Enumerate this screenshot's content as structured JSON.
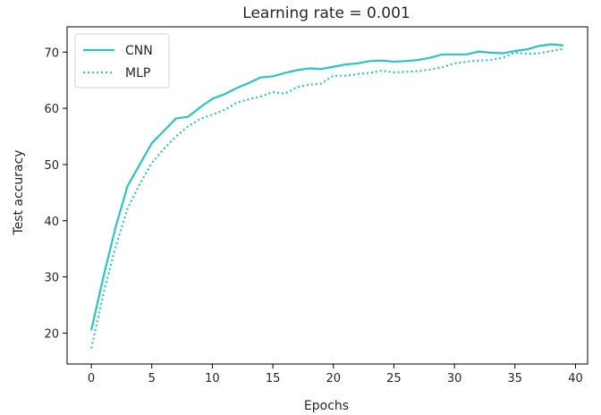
{
  "chart_data": {
    "type": "line",
    "title": "Learning rate = 0.001",
    "xlabel": "Epochs",
    "ylabel": "Test accuracy",
    "xlim": [
      -2,
      41
    ],
    "ylim": [
      14.5,
      74.5
    ],
    "xticks": [
      0,
      5,
      10,
      15,
      20,
      25,
      30,
      35,
      40
    ],
    "yticks": [
      20,
      30,
      40,
      50,
      60,
      70
    ],
    "grid": false,
    "legend_position": "top-left",
    "x": [
      0,
      1,
      2,
      3,
      4,
      5,
      6,
      7,
      8,
      9,
      10,
      11,
      12,
      13,
      14,
      15,
      16,
      17,
      18,
      19,
      20,
      21,
      22,
      23,
      24,
      25,
      26,
      27,
      28,
      29,
      30,
      31,
      32,
      33,
      34,
      35,
      36,
      37,
      38,
      39
    ],
    "series": [
      {
        "name": "CNN",
        "style": "solid",
        "color": "#2bc4c4",
        "values": [
          20.5,
          30.0,
          38.8,
          46.2,
          50.0,
          53.8,
          56.0,
          58.2,
          58.5,
          60.2,
          61.7,
          62.5,
          63.6,
          64.5,
          65.5,
          65.7,
          66.3,
          66.8,
          67.1,
          67.0,
          67.4,
          67.8,
          68.0,
          68.4,
          68.5,
          68.3,
          68.4,
          68.6,
          69.0,
          69.6,
          69.6,
          69.6,
          70.1,
          69.9,
          69.8,
          70.2,
          70.5,
          71.1,
          71.4,
          71.2
        ]
      },
      {
        "name": "MLP",
        "style": "dotted",
        "color": "#2bc4c4",
        "values": [
          17.3,
          27.0,
          35.3,
          42.2,
          46.5,
          50.3,
          52.8,
          55.0,
          56.8,
          58.1,
          58.9,
          59.7,
          61.0,
          61.6,
          62.1,
          62.9,
          62.6,
          63.8,
          64.2,
          64.4,
          65.8,
          65.8,
          66.1,
          66.3,
          66.7,
          66.4,
          66.5,
          66.6,
          66.9,
          67.3,
          68.0,
          68.3,
          68.5,
          68.6,
          69.0,
          69.9,
          69.7,
          69.8,
          70.2,
          70.6
        ]
      }
    ]
  }
}
